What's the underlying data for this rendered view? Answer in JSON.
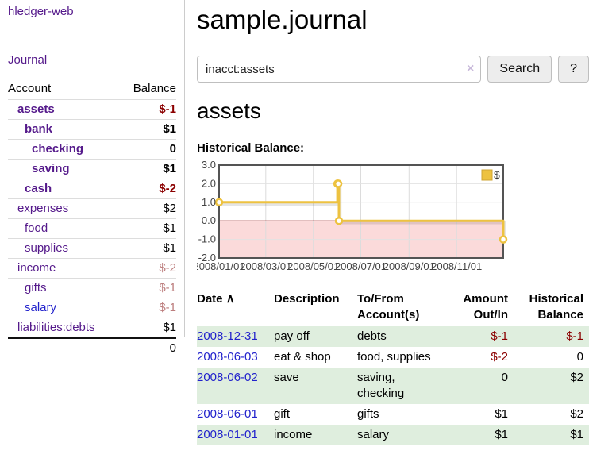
{
  "brand": "hledger-web",
  "nav": {
    "journal": "Journal"
  },
  "sidebar_table": {
    "headers": [
      "Account",
      "Balance"
    ],
    "rows": [
      {
        "account": "assets",
        "balance": "$-1",
        "indent": 1,
        "bold": true,
        "balance_class": "neg-strong"
      },
      {
        "account": "bank",
        "balance": "$1",
        "indent": 2,
        "bold": true,
        "balance_class": ""
      },
      {
        "account": "checking",
        "balance": "0",
        "indent": 3,
        "bold": true,
        "balance_class": ""
      },
      {
        "account": "saving",
        "balance": "$1",
        "indent": 3,
        "bold": true,
        "balance_class": ""
      },
      {
        "account": "cash",
        "balance": "$-2",
        "indent": 2,
        "bold": true,
        "balance_class": "neg-strong"
      },
      {
        "account": "expenses",
        "balance": "$2",
        "indent": 1,
        "bold": false,
        "balance_class": ""
      },
      {
        "account": "food",
        "balance": "$1",
        "indent": 2,
        "bold": false,
        "balance_class": ""
      },
      {
        "account": "supplies",
        "balance": "$1",
        "indent": 2,
        "bold": false,
        "balance_class": ""
      },
      {
        "account": "income",
        "balance": "$-2",
        "indent": 1,
        "bold": false,
        "balance_class": "neg-faint"
      },
      {
        "account": "gifts",
        "balance": "$-1",
        "indent": 2,
        "bold": false,
        "balance_class": "neg-faint"
      },
      {
        "account": "salary",
        "balance": "$-1",
        "indent": 2,
        "bold": false,
        "balance_class": "neg-faint",
        "link": "blue"
      },
      {
        "account": "liabilities:debts",
        "balance": "$1",
        "indent": 1,
        "bold": false,
        "balance_class": ""
      }
    ],
    "total": "0"
  },
  "header": {
    "title": "sample.journal"
  },
  "search": {
    "value": "inacct:assets",
    "clear_icon": "×",
    "button": "Search",
    "help_button": "?"
  },
  "account_page": {
    "title": "assets",
    "chart_label": "Historical Balance:"
  },
  "chart_data": {
    "type": "line",
    "title": "Historical Balance:",
    "series": [
      {
        "name": "$",
        "color": "#edc240",
        "step": true,
        "points": [
          [
            "2008-01-01",
            1
          ],
          [
            "2008-06-01",
            2
          ],
          [
            "2008-06-02",
            2
          ],
          [
            "2008-06-03",
            0
          ],
          [
            "2008-12-31",
            -1
          ]
        ]
      }
    ],
    "x_range": [
      "2008-01-01",
      "2008-12-31"
    ],
    "ylim": [
      -2,
      3
    ],
    "x_ticks": [
      "2008/01/01",
      "2008/03/01",
      "2008/05/01",
      "2008/07/01",
      "2008/09/01",
      "2008/11/01"
    ],
    "y_ticks": [
      "3.0",
      "2.0",
      "1.0",
      "0.0",
      "-1.0",
      "-2.0"
    ],
    "grid": true,
    "negative_fill": "#fbdada",
    "zero_line_color": "#8b0000",
    "border_color": "#545454",
    "legend": {
      "label": "$",
      "position": "top-right"
    }
  },
  "register_table": {
    "headers": {
      "date": "Date",
      "sort_icon": "∧",
      "description": "Description",
      "account": "To/From Account(s)",
      "amount": "Amount Out/In",
      "balance": "Historical Balance"
    },
    "rows": [
      {
        "date": "2008-12-31",
        "description": "pay off",
        "accounts": "debts",
        "amount": "$-1",
        "amount_neg": true,
        "balance": "$-1",
        "balance_neg": true
      },
      {
        "date": "2008-06-03",
        "description": "eat & shop",
        "accounts": "food, supplies",
        "amount": "$-2",
        "amount_neg": true,
        "balance": "0",
        "balance_neg": false
      },
      {
        "date": "2008-06-02",
        "description": "save",
        "accounts": "saving, checking",
        "amount": "0",
        "amount_neg": false,
        "balance": "$2",
        "balance_neg": false
      },
      {
        "date": "2008-06-01",
        "description": "gift",
        "accounts": "gifts",
        "amount": "$1",
        "amount_neg": false,
        "balance": "$2",
        "balance_neg": false
      },
      {
        "date": "2008-01-01",
        "description": "income",
        "accounts": "salary",
        "amount": "$1",
        "amount_neg": false,
        "balance": "$1",
        "balance_neg": false
      }
    ]
  }
}
